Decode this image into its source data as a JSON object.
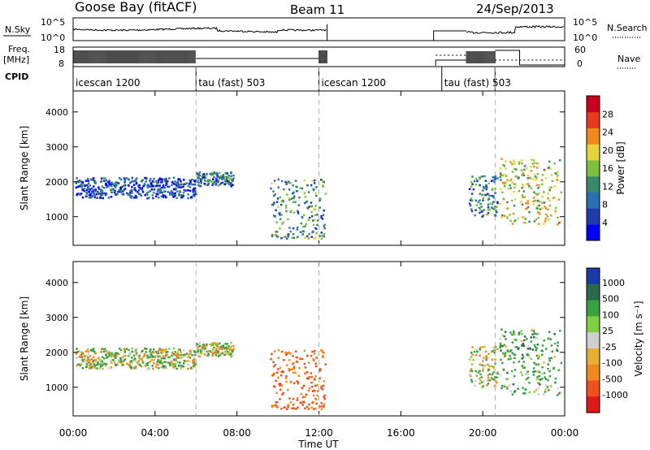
{
  "header": {
    "station": "Goose Bay (fitACF)",
    "beam": "Beam 11",
    "date": "24/Sep/2013"
  },
  "left_labels": {
    "nsky": "N.Sky",
    "freq_line1": "Freq.",
    "freq_line2": "[MHz]",
    "cpid": "CPID"
  },
  "right_labels": {
    "nsearch": "N.Search",
    "nave": "Nave"
  },
  "noise_panel": {
    "ticks_left": [
      "10^5",
      "10^0"
    ],
    "ticks_right": [
      "10^5",
      "10^0"
    ]
  },
  "freq_panel": {
    "ticks_left": [
      "18",
      "8"
    ],
    "ticks_right": [
      "60",
      "0"
    ]
  },
  "cpid_panel": {
    "segments": [
      {
        "label": "icescan 1200",
        "start_h": 0,
        "end_h": 6
      },
      {
        "label": "tau (fast) 503",
        "start_h": 6,
        "end_h": 12
      },
      {
        "label": "icescan 1200",
        "start_h": 12,
        "end_h": 18
      },
      {
        "label": "tau (fast) 503",
        "start_h": 18,
        "end_h": 20.6
      }
    ]
  },
  "x_axis": {
    "label": "Time UT",
    "ticks": [
      "00:00",
      "04:00",
      "08:00",
      "12:00",
      "16:00",
      "20:00",
      "00:00"
    ],
    "range_h": [
      0,
      24
    ]
  },
  "power_panel": {
    "ylabel": "Slant Range [km]",
    "y_ticks": [
      "4000",
      "3000",
      "2000",
      "1000"
    ],
    "y_range_km": [
      180,
      4600
    ],
    "colorbar_title": "Power [dB]",
    "colorbar_ticks": [
      "4",
      "8",
      "12",
      "16",
      "20",
      "24",
      "28"
    ],
    "colorbar_range": [
      0,
      32
    ],
    "colors": [
      "#0000ff",
      "#1f3ca8",
      "#2a6fb0",
      "#3a8a6a",
      "#7fbf3f",
      "#e6d23a",
      "#f08a1e",
      "#e63a1e",
      "#c8001e"
    ]
  },
  "velocity_panel": {
    "ylabel": "Slant Range [km]",
    "y_ticks": [
      "4000",
      "3000",
      "2000",
      "1000"
    ],
    "y_range_km": [
      180,
      4600
    ],
    "colorbar_title": "Velocity [m s⁻¹]",
    "colorbar_ticks": [
      "1000",
      "500",
      "100",
      "25",
      "-25",
      "-100",
      "-500",
      "-1000"
    ],
    "colors": [
      "#1a3aa8",
      "#2a6a4a",
      "#3aa040",
      "#7fd040",
      "#cfcfcf",
      "#e6b030",
      "#f08a1e",
      "#f05020",
      "#e01818"
    ]
  },
  "chart_data": {
    "type": "heatmap",
    "title": "Goose Bay (fitACF)   Beam 11   24/Sep/2013",
    "xlabel": "Time UT",
    "ylabel": "Slant Range [km]",
    "xlim_hours": [
      0,
      24
    ],
    "ylim_km": [
      180,
      4600
    ],
    "grid": false,
    "scatter_regions": [
      {
        "t_start_h": 0.1,
        "t_end_h": 6.0,
        "range_low_km": 1550,
        "range_high_km": 2150,
        "power_db": 6,
        "velocity": 10
      },
      {
        "t_start_h": 6.0,
        "t_end_h": 7.8,
        "range_low_km": 1900,
        "range_high_km": 2300,
        "power_db": 10,
        "velocity": 20
      },
      {
        "t_start_h": 9.6,
        "t_end_h": 12.3,
        "range_low_km": 400,
        "range_high_km": 2100,
        "power_db": 12,
        "velocity": -300
      },
      {
        "t_start_h": 19.3,
        "t_end_h": 20.7,
        "range_low_km": 1000,
        "range_high_km": 2200,
        "power_db": 10,
        "velocity": -20
      },
      {
        "t_start_h": 20.8,
        "t_end_h": 23.8,
        "range_low_km": 800,
        "range_high_km": 2700,
        "power_db": 18,
        "velocity": 150
      }
    ]
  }
}
